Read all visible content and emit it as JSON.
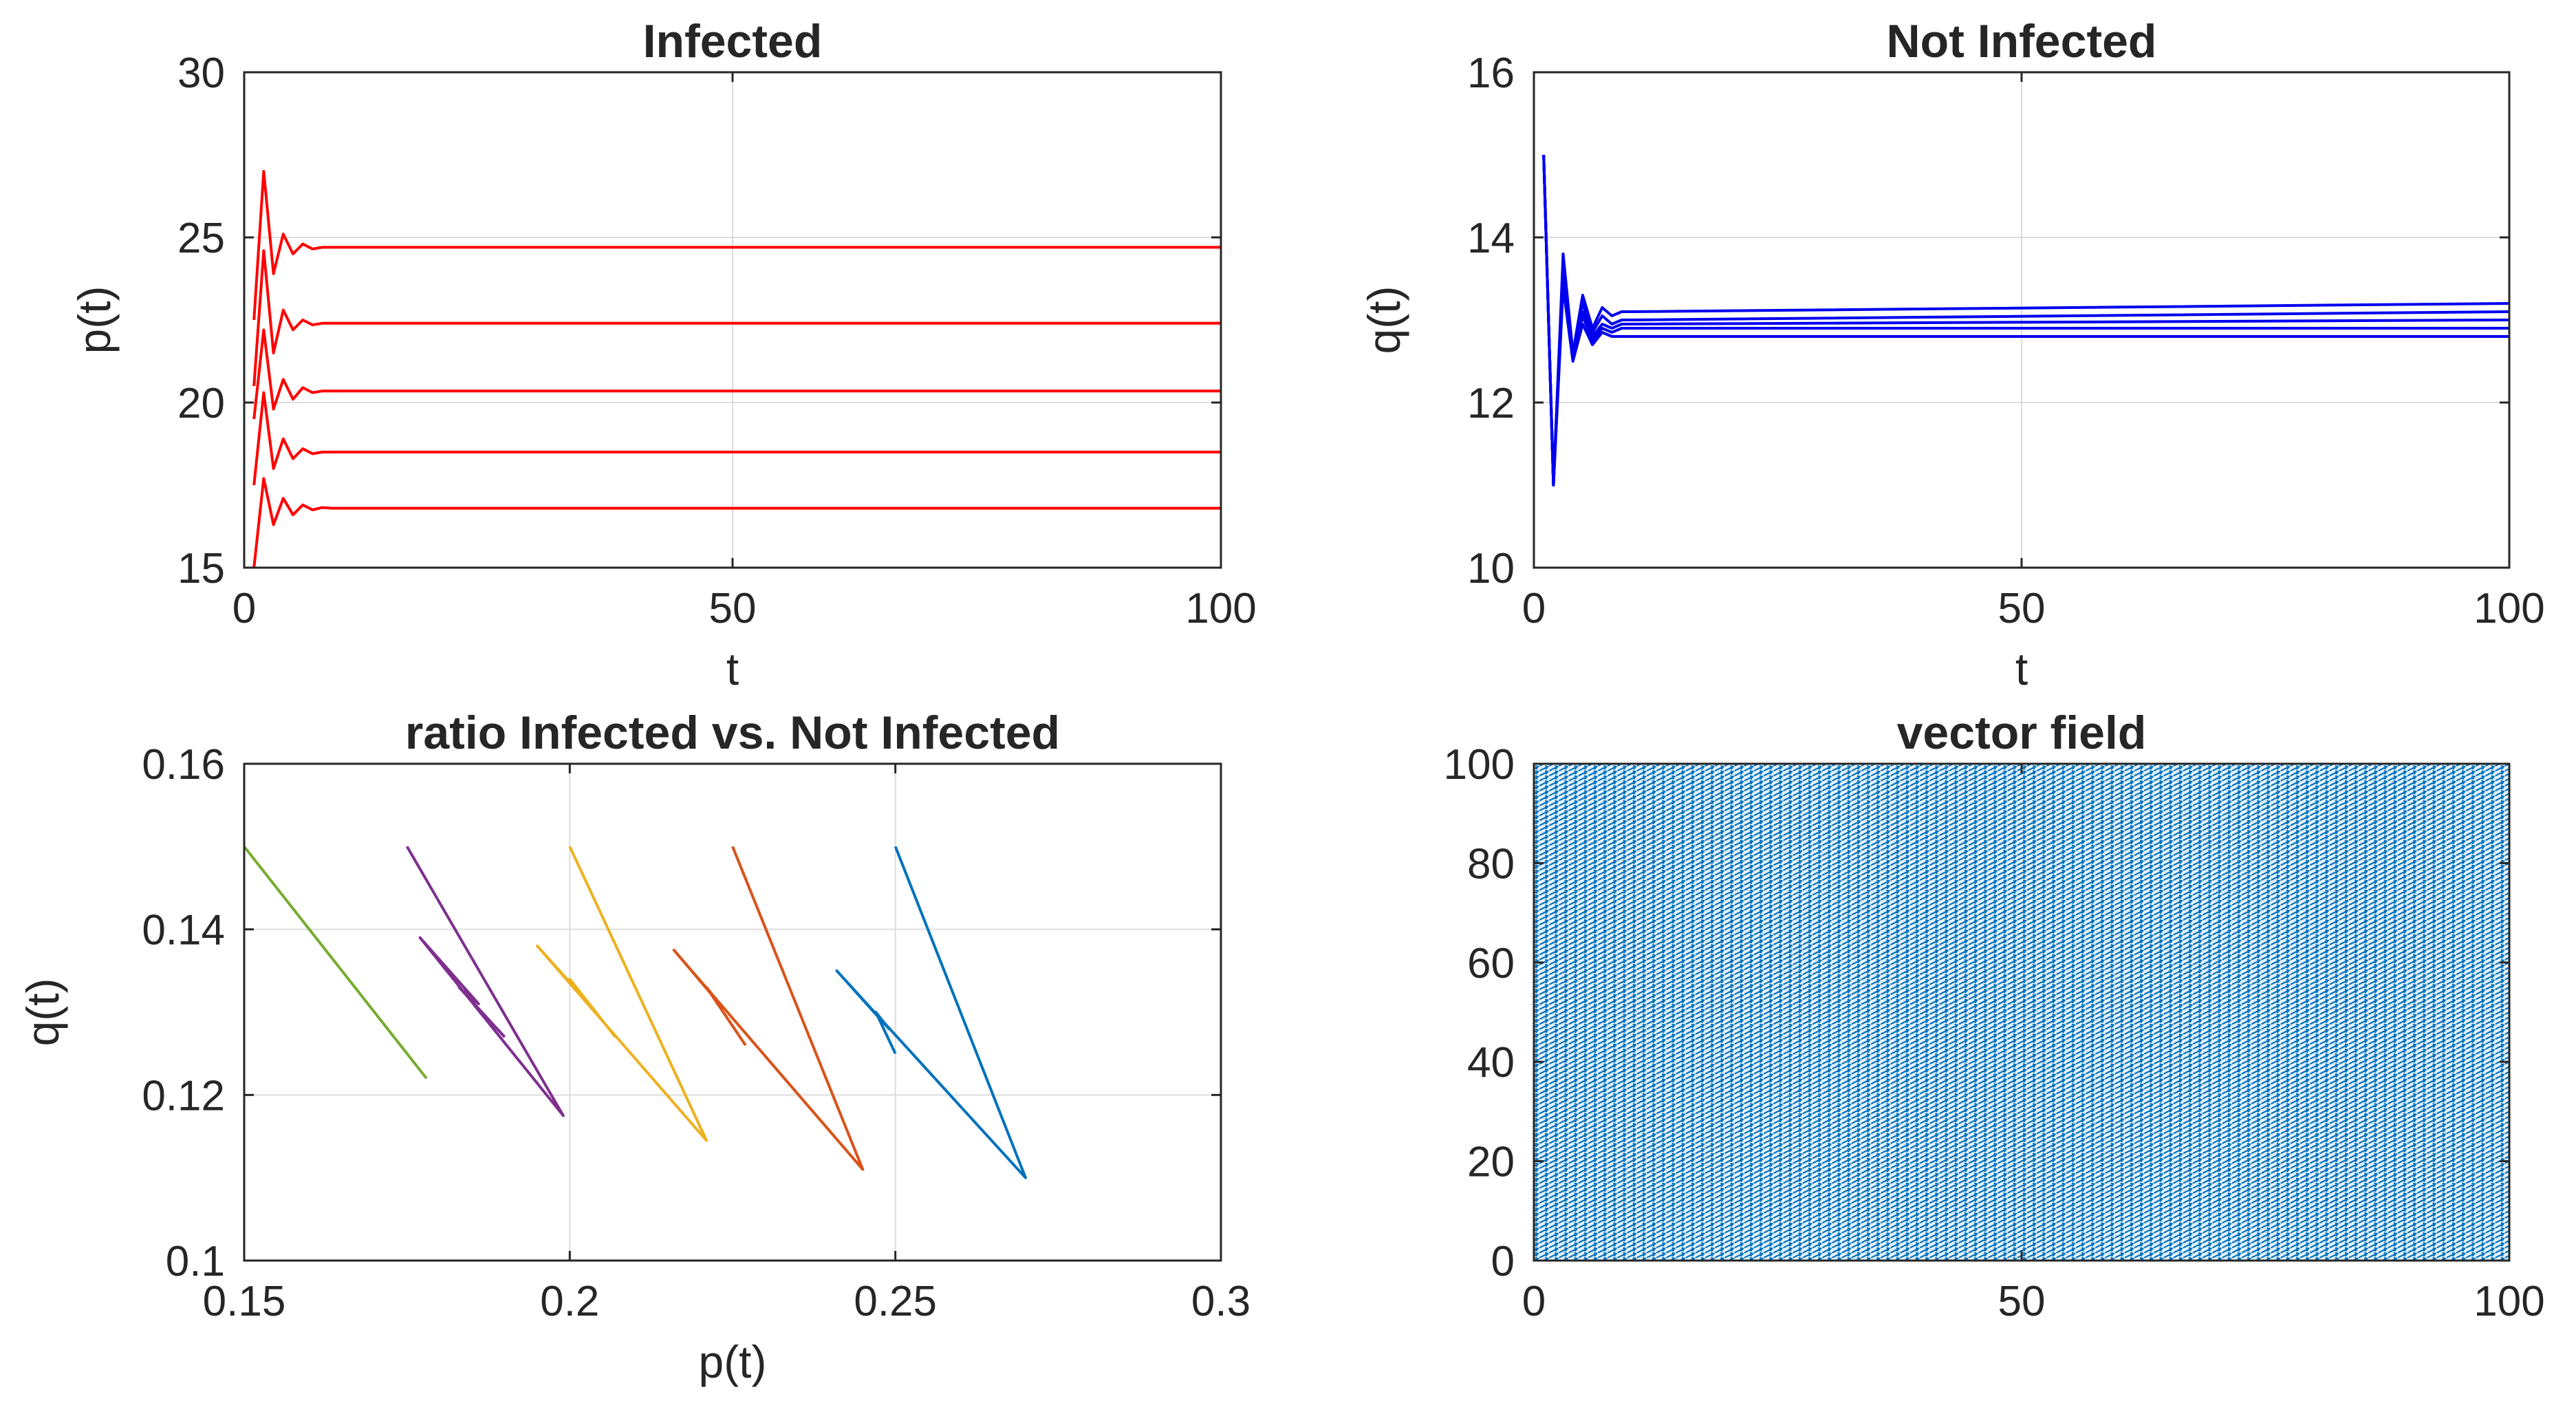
{
  "chart_data": [
    {
      "id": "infected",
      "type": "line",
      "title": "Infected",
      "xlabel": "t",
      "ylabel": "p(t)",
      "xlim": [
        0,
        100
      ],
      "ylim": [
        15,
        30
      ],
      "xticks": [
        0,
        50,
        100
      ],
      "yticks": [
        15,
        20,
        25,
        30
      ],
      "grid": true,
      "color": "#ff0000",
      "series": [
        {
          "x": [
            1,
            2,
            3,
            4,
            5,
            6,
            7,
            8,
            9,
            10,
            100
          ],
          "y": [
            15.0,
            17.7,
            16.3,
            17.1,
            16.6,
            16.9,
            16.75,
            16.82,
            16.8,
            16.8,
            16.8
          ]
        },
        {
          "x": [
            1,
            2,
            3,
            4,
            5,
            6,
            7,
            8,
            9,
            10,
            100
          ],
          "y": [
            17.5,
            20.3,
            18.0,
            18.9,
            18.3,
            18.6,
            18.45,
            18.5,
            18.5,
            18.5,
            18.5
          ]
        },
        {
          "x": [
            1,
            2,
            3,
            4,
            5,
            6,
            7,
            8,
            9,
            10,
            100
          ],
          "y": [
            19.5,
            22.2,
            19.8,
            20.7,
            20.1,
            20.45,
            20.3,
            20.35,
            20.35,
            20.35,
            20.35
          ]
        },
        {
          "x": [
            1,
            2,
            3,
            4,
            5,
            6,
            7,
            8,
            9,
            10,
            100
          ],
          "y": [
            20.5,
            24.6,
            21.5,
            22.8,
            22.2,
            22.5,
            22.35,
            22.4,
            22.4,
            22.4,
            22.4
          ]
        },
        {
          "x": [
            1,
            2,
            3,
            4,
            5,
            6,
            7,
            8,
            9,
            10,
            100
          ],
          "y": [
            22.5,
            27.0,
            23.9,
            25.1,
            24.5,
            24.8,
            24.65,
            24.7,
            24.7,
            24.7,
            24.7
          ]
        }
      ]
    },
    {
      "id": "not-infected",
      "type": "line",
      "title": "Not Infected",
      "xlabel": "t",
      "ylabel": "q(t)",
      "xlim": [
        0,
        100
      ],
      "ylim": [
        10,
        16
      ],
      "xticks": [
        0,
        50,
        100
      ],
      "yticks": [
        10,
        12,
        14,
        16
      ],
      "grid": true,
      "color": "#0000ee",
      "series": [
        {
          "x": [
            1,
            2,
            3,
            4,
            5,
            6,
            7,
            8,
            9,
            10,
            100
          ],
          "y": [
            15.0,
            11.0,
            13.8,
            12.6,
            13.3,
            12.9,
            13.15,
            13.05,
            13.1,
            13.1,
            13.2
          ]
        },
        {
          "x": [
            1,
            2,
            3,
            4,
            5,
            6,
            7,
            8,
            9,
            10,
            100
          ],
          "y": [
            15.0,
            11.0,
            13.7,
            12.6,
            13.2,
            12.85,
            13.05,
            12.95,
            13.0,
            13.0,
            13.1
          ]
        },
        {
          "x": [
            1,
            2,
            3,
            4,
            5,
            6,
            7,
            8,
            9,
            10,
            100
          ],
          "y": [
            15.0,
            11.0,
            13.6,
            12.55,
            13.1,
            12.8,
            12.95,
            12.9,
            12.95,
            12.95,
            13.0
          ]
        },
        {
          "x": [
            1,
            2,
            3,
            4,
            5,
            6,
            7,
            8,
            9,
            10,
            100
          ],
          "y": [
            15.0,
            11.0,
            13.5,
            12.5,
            13.05,
            12.75,
            12.9,
            12.85,
            12.9,
            12.9,
            12.9
          ]
        },
        {
          "x": [
            1,
            2,
            3,
            4,
            5,
            6,
            7,
            8,
            9,
            10,
            100
          ],
          "y": [
            15.0,
            11.0,
            13.4,
            12.5,
            12.95,
            12.7,
            12.85,
            12.8,
            12.8,
            12.8,
            12.8
          ]
        }
      ]
    },
    {
      "id": "ratio",
      "type": "line",
      "title": "ratio Infected vs. Not Infected",
      "xlabel": "p(t)",
      "ylabel": "q(t)",
      "xlim": [
        0.15,
        0.3
      ],
      "ylim": [
        0.1,
        0.16
      ],
      "xticks": [
        0.15,
        0.2,
        0.25,
        0.3
      ],
      "yticks": [
        0.1,
        0.12,
        0.14,
        0.16
      ],
      "grid": true,
      "series": [
        {
          "color": "#0072bd",
          "x": [
            0.25,
            0.27,
            0.241,
            0.249,
            0.247,
            0.25
          ],
          "y": [
            0.15,
            0.11,
            0.135,
            0.128,
            0.13,
            0.125
          ]
        },
        {
          "color": "#d95319",
          "x": [
            0.225,
            0.245,
            0.216,
            0.223,
            0.221,
            0.227
          ],
          "y": [
            0.15,
            0.111,
            0.1375,
            0.131,
            0.133,
            0.126
          ]
        },
        {
          "color": "#edb120",
          "x": [
            0.2,
            0.221,
            0.195,
            0.203,
            0.2,
            0.207
          ],
          "y": [
            0.15,
            0.1145,
            0.138,
            0.131,
            0.134,
            0.127
          ]
        },
        {
          "color": "#7e2f8e",
          "x": [
            0.175,
            0.199,
            0.177,
            0.186,
            0.183,
            0.19
          ],
          "y": [
            0.15,
            0.1175,
            0.139,
            0.131,
            0.133,
            0.127
          ]
        },
        {
          "color": "#77ac30",
          "x": [
            0.15,
            0.178
          ],
          "y": [
            0.15,
            0.122
          ]
        }
      ]
    },
    {
      "id": "vector-field",
      "type": "quiver",
      "title": "vector field",
      "xlim": [
        0,
        100
      ],
      "ylim": [
        0,
        100
      ],
      "xticks": [
        0,
        50,
        100
      ],
      "yticks": [
        0,
        20,
        40,
        60,
        80,
        100
      ],
      "grid": false,
      "color": "#0072bd"
    }
  ]
}
